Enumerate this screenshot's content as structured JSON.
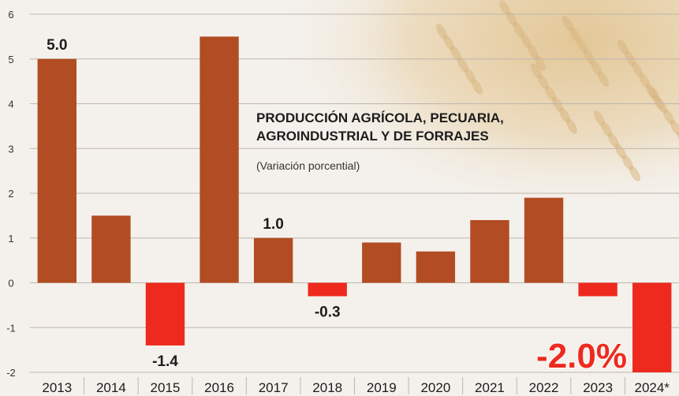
{
  "chart_data": {
    "type": "bar",
    "title_lines": [
      "PRODUCCIÓN AGRÍCOLA, PECUARIA,",
      "AGROINDUSTRIAL Y DE FORRAJES"
    ],
    "subtitle": "(Variación porcential)",
    "categories": [
      "2013",
      "2014",
      "2015",
      "2016",
      "2017",
      "2018",
      "2019",
      "2020",
      "2021",
      "2022",
      "2023",
      "2024*"
    ],
    "values": [
      5.0,
      1.5,
      -1.4,
      5.5,
      1.0,
      -0.3,
      0.9,
      0.7,
      1.4,
      1.9,
      -0.3,
      -2.0
    ],
    "data_labels": [
      {
        "index": 0,
        "text": "5.0"
      },
      {
        "index": 2,
        "text": "-1.4"
      },
      {
        "index": 4,
        "text": "1.0"
      },
      {
        "index": 5,
        "text": "-0.3"
      },
      {
        "index": 11,
        "text": "-2.0%"
      }
    ],
    "ylim": [
      -2,
      6
    ],
    "yticks": [
      -2,
      -1,
      0,
      1,
      2,
      3,
      4,
      5,
      6
    ],
    "grid": true,
    "xlabel": "",
    "ylabel": "",
    "colors": {
      "positive": "#b24c23",
      "negative": "#ee2a1e",
      "grid": "#bdb6ad",
      "highlight_label": "#ee2a1e"
    }
  }
}
